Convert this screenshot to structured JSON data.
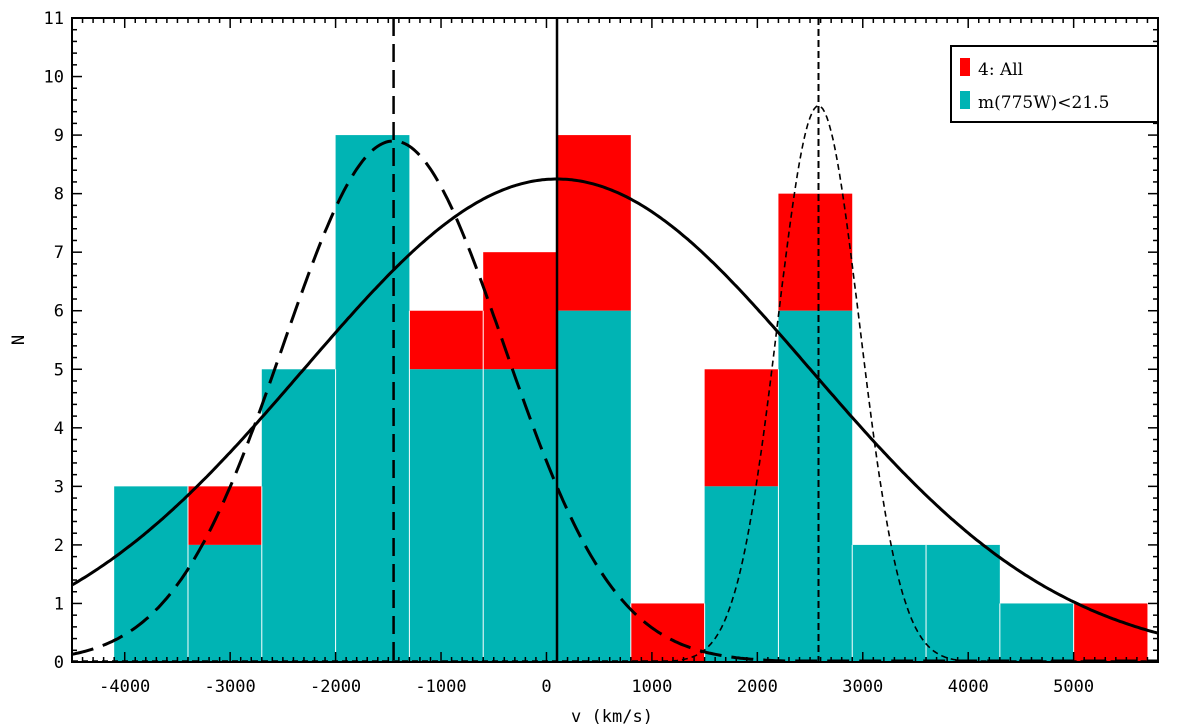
{
  "chart_data": {
    "type": "bar",
    "xlabel": "v (km/s)",
    "ylabel": "N",
    "xlim": [
      -4500,
      5800
    ],
    "ylim": [
      0,
      11
    ],
    "xticks": [
      -4000,
      -3000,
      -2000,
      -1000,
      0,
      1000,
      2000,
      3000,
      4000,
      5000
    ],
    "yticks": [
      0,
      1,
      2,
      3,
      4,
      5,
      6,
      7,
      8,
      9,
      10,
      11
    ],
    "bin_edges": [
      -4100,
      -3400,
      -2700,
      -2000,
      -1300,
      -600,
      100,
      800,
      1500,
      2200,
      2900,
      3600,
      4300,
      5000,
      5700
    ],
    "series": [
      {
        "name": "4: All",
        "color": "#ff0000",
        "values": [
          3,
          3,
          5,
          9,
          6,
          7,
          9,
          1,
          5,
          8,
          2,
          2,
          1,
          1
        ]
      },
      {
        "name": "m(775W)<21.5",
        "color": "#00b4b4",
        "values": [
          3,
          2,
          5,
          9,
          5,
          5,
          6,
          0,
          3,
          6,
          2,
          2,
          1,
          0
        ]
      }
    ],
    "fits": [
      {
        "style": "solid",
        "mean": 100,
        "sigma": 2400,
        "peak": 8.25
      },
      {
        "style": "long-dash",
        "mean": -1450,
        "sigma": 1050,
        "peak": 8.9
      },
      {
        "style": "short-dash",
        "mean": 2580,
        "sigma": 390,
        "peak": 9.5
      }
    ],
    "legend": {
      "position": "top-right",
      "entries": [
        "4: All",
        "m(775W)<21.5"
      ]
    }
  }
}
